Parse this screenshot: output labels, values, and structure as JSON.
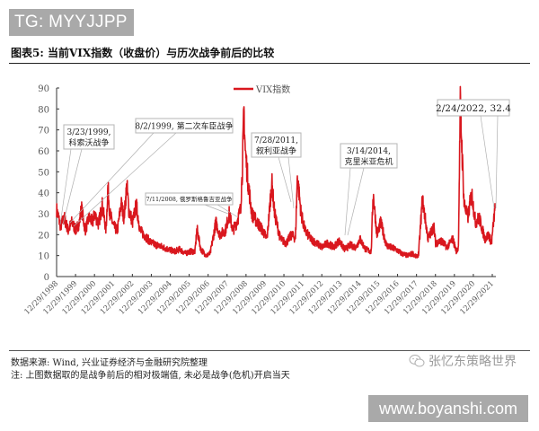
{
  "watermark_top": "TG: MYYJJPP",
  "watermark_bottom": "www.boyanshi.com",
  "figure_title": "图表5: 当前VIX指数（收盘价）与历次战争前后的比较",
  "footer": {
    "source": "数据来源: Wind, 兴业证券经济与金融研究院整理",
    "note": "注: 上图数据取的是战争前后的相对极端值, 未必是战争(危机)开启当天",
    "wechat_label": "张忆东策略世界",
    "wechat_icon": "wechat-icon"
  },
  "colors": {
    "series": "#d9171e",
    "axis": "#333333",
    "callout_border": "#b5b5b5"
  },
  "chart_data": {
    "type": "line",
    "title": "当前VIX指数（收盘价）与历次战争前后的比较",
    "xlabel": "",
    "ylabel": "",
    "ylim": [
      0,
      90
    ],
    "yticks": [
      0,
      10,
      20,
      30,
      40,
      50,
      60,
      70,
      80,
      90
    ],
    "xticks": [
      "12/29/1998",
      "12/29/1999",
      "12/29/2000",
      "12/29/2001",
      "12/29/2002",
      "12/29/2003",
      "12/29/2004",
      "12/29/2005",
      "12/29/2006",
      "12/29/2007",
      "12/29/2008",
      "12/29/2009",
      "12/29/2010",
      "12/29/2011",
      "12/29/2012",
      "12/29/2013",
      "12/29/2014",
      "12/29/2015",
      "12/29/2016",
      "12/29/2017",
      "12/29/2018",
      "12/29/2019",
      "12/29/2020",
      "12/29/2021"
    ],
    "grid": false,
    "legend": {
      "position": "top-right",
      "entries": [
        "VIX指数"
      ]
    },
    "series": [
      {
        "name": "VIX指数",
        "x": [
          1998.99,
          1999.2,
          1999.4,
          1999.6,
          1999.8,
          2000.0,
          2000.2,
          2000.3,
          2000.5,
          2000.7,
          2000.9,
          2001.0,
          2001.2,
          2001.4,
          2001.6,
          2001.7,
          2001.8,
          2002.0,
          2002.2,
          2002.4,
          2002.55,
          2002.7,
          2002.8,
          2003.0,
          2003.2,
          2003.4,
          2003.6,
          2003.8,
          2004.0,
          2004.3,
          2004.6,
          2004.9,
          2005.2,
          2005.5,
          2005.8,
          2006.0,
          2006.3,
          2006.4,
          2006.6,
          2006.9,
          2007.1,
          2007.2,
          2007.4,
          2007.6,
          2007.9,
          2008.1,
          2008.3,
          2008.5,
          2008.7,
          2008.8,
          2008.88,
          2008.95,
          2009.1,
          2009.3,
          2009.5,
          2009.8,
          2010.1,
          2010.35,
          2010.5,
          2010.8,
          2011.1,
          2011.4,
          2011.6,
          2011.7,
          2011.9,
          2012.1,
          2012.4,
          2012.7,
          2013.0,
          2013.3,
          2013.6,
          2013.9,
          2014.2,
          2014.5,
          2014.8,
          2015.0,
          2015.3,
          2015.6,
          2015.7,
          2015.9,
          2016.1,
          2016.4,
          2016.6,
          2016.9,
          2017.2,
          2017.5,
          2017.8,
          2018.0,
          2018.1,
          2018.3,
          2018.6,
          2018.9,
          2019.0,
          2019.3,
          2019.6,
          2019.9,
          2020.1,
          2020.2,
          2020.3,
          2020.5,
          2020.7,
          2020.9,
          2021.1,
          2021.3,
          2021.6,
          2021.8,
          2021.95,
          2022.1,
          2022.15
        ],
        "values": [
          32,
          24,
          28,
          22,
          26,
          22,
          26,
          33,
          22,
          28,
          26,
          30,
          25,
          34,
          22,
          43,
          30,
          24,
          22,
          35,
          28,
          44,
          32,
          26,
          34,
          22,
          20,
          18,
          16,
          15,
          14,
          13,
          12,
          13,
          11,
          12,
          12,
          23,
          13,
          10,
          11,
          16,
          26,
          20,
          22,
          30,
          22,
          26,
          32,
          52,
          80,
          60,
          45,
          30,
          27,
          23,
          18,
          45,
          30,
          18,
          16,
          20,
          18,
          48,
          30,
          22,
          18,
          16,
          14,
          16,
          14,
          17,
          13,
          15,
          14,
          18,
          13,
          12,
          40,
          20,
          26,
          15,
          14,
          13,
          11,
          10,
          11,
          9,
          11,
          37,
          18,
          24,
          16,
          17,
          14,
          18,
          12,
          14,
          82,
          35,
          28,
          40,
          26,
          28,
          18,
          20,
          16,
          30,
          32.4
        ]
      }
    ],
    "annotations": [
      {
        "label_lines": [
          "3/23/1999,",
          "科索沃战争"
        ],
        "date": "3/23/1999",
        "event": "科索沃战争"
      },
      {
        "label_lines": [
          "8/2/1999, 第二次车臣战争"
        ],
        "date": "8/2/1999",
        "event": "第二次车臣战争"
      },
      {
        "label_lines": [
          "7/11/2008, 俄罗斯格鲁吉亚战争"
        ],
        "date": "7/11/2008",
        "event": "俄罗斯格鲁吉亚战争"
      },
      {
        "label_lines": [
          "7/28/2011,",
          "叙利亚战争"
        ],
        "date": "7/28/2011",
        "event": "叙利亚战争"
      },
      {
        "label_lines": [
          "3/14/2014,",
          "克里米亚危机"
        ],
        "date": "3/14/2014",
        "event": "克里米亚危机"
      },
      {
        "label_lines": [
          "2/24/2022, 32.4"
        ],
        "date": "2/24/2022",
        "value": 32.4
      }
    ]
  }
}
